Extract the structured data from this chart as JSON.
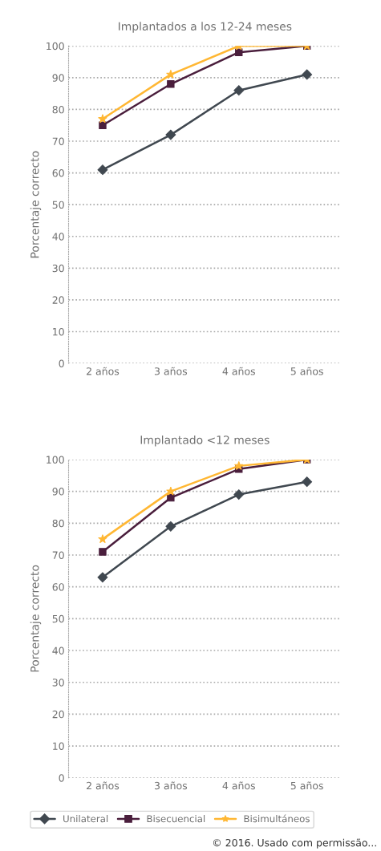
{
  "chart_data": [
    {
      "type": "line",
      "title": "Implantados a los 12-24 meses",
      "ylabel": "Porcentaje correcto",
      "categories": [
        "2 años",
        "3 años",
        "4 años",
        "5 años"
      ],
      "series": [
        {
          "color": "#404850",
          "marker": "diamond",
          "values": [
            61,
            72,
            86,
            91
          ]
        },
        {
          "color": "#4a1e3c",
          "marker": "square",
          "values": [
            75,
            88,
            98,
            100
          ]
        },
        {
          "color": "#ffb733",
          "marker": "star",
          "values": [
            77,
            91,
            100,
            100
          ]
        }
      ],
      "ylim": [
        0,
        100
      ],
      "yticks": [
        0,
        10,
        20,
        30,
        40,
        50,
        60,
        70,
        80,
        90,
        100
      ],
      "grid": "y",
      "legend": false
    },
    {
      "type": "line",
      "title": "Implantado <12 meses",
      "ylabel": "Porcentaje correcto",
      "categories": [
        "2 años",
        "3 años",
        "4 años",
        "5 años"
      ],
      "series": [
        {
          "name": "Unilateral",
          "color": "#404850",
          "marker": "diamond",
          "values": [
            63,
            79,
            89,
            93
          ]
        },
        {
          "name": "Bisecuencial",
          "color": "#4a1e3c",
          "marker": "square",
          "values": [
            71,
            88,
            97,
            100
          ]
        },
        {
          "name": "Bisimultáneos",
          "color": "#ffb733",
          "marker": "star",
          "values": [
            75,
            90,
            98,
            100
          ]
        }
      ],
      "ylim": [
        0,
        100
      ],
      "yticks": [
        0,
        10,
        20,
        30,
        40,
        50,
        60,
        70,
        80,
        90,
        100
      ],
      "grid": "y",
      "legend": "bottom",
      "annotations": [
        "© 2016. Usado com permissão..."
      ]
    }
  ]
}
